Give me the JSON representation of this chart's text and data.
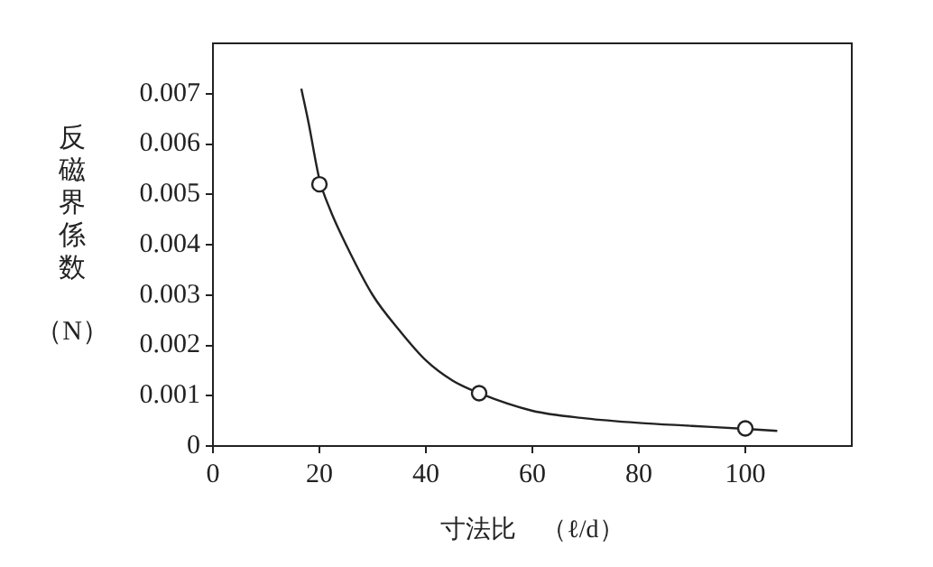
{
  "chart_data": {
    "type": "scatter",
    "xlabel": "寸法比　（ℓ/d）",
    "ylabel": "反磁界係数（N）",
    "xlim": [
      0,
      120
    ],
    "xticks": [
      0,
      20,
      40,
      60,
      80,
      100
    ],
    "ylim": [
      0,
      0.008
    ],
    "yticks": [
      0,
      0.001,
      0.002,
      0.003,
      0.004,
      0.005,
      0.006,
      0.007
    ],
    "grid": false,
    "legend": false,
    "marker": "circle",
    "series": [
      {
        "color": "#222222",
        "x": [
          20,
          50,
          100
        ],
        "values": [
          0.0052,
          0.00105,
          0.00035
        ]
      },
      {
        "type": "line",
        "color": "#222222",
        "marker": "none",
        "x": [
          16.6,
          18,
          20,
          22,
          25,
          30,
          35,
          40,
          45,
          50,
          60,
          70,
          80,
          90,
          100,
          106
        ],
        "values": [
          0.0071,
          0.0064,
          0.0053,
          0.0047,
          0.004,
          0.003,
          0.0023,
          0.0017,
          0.0013,
          0.00105,
          0.0007,
          0.00055,
          0.00046,
          0.0004,
          0.00034,
          0.0003
        ]
      }
    ]
  }
}
